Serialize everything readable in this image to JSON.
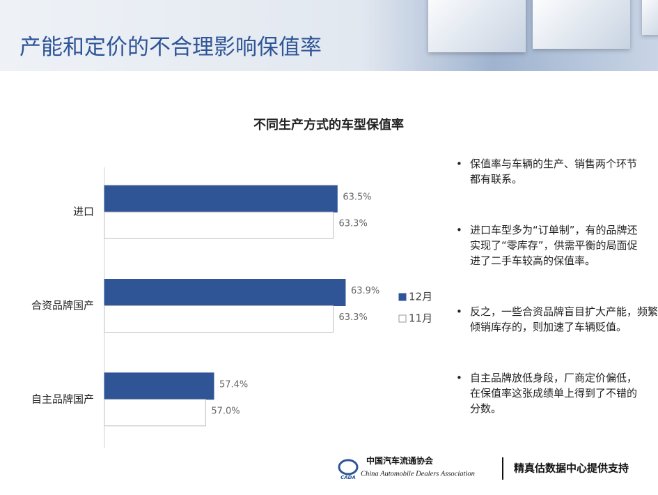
{
  "header": {
    "title": "产能和定价的不合理影响保值率"
  },
  "chart_data": {
    "type": "bar",
    "orientation": "horizontal",
    "title": "不同生产方式的车型保值率",
    "categories": [
      "进口",
      "合资品牌国产",
      "自主品牌国产"
    ],
    "series": [
      {
        "name": "12月",
        "color": "#2f5597",
        "values": [
          63.5,
          63.9,
          57.4
        ],
        "value_labels": [
          "63.5%",
          "63.9%",
          "57.4%"
        ]
      },
      {
        "name": "11月",
        "color": "#ffffff",
        "values": [
          63.3,
          63.3,
          57.0
        ],
        "value_labels": [
          "63.3%",
          "63.3%",
          "57.0%"
        ]
      }
    ],
    "xlim": [
      52,
      66
    ]
  },
  "bullets": [
    "保值率与车辆的生产、销售两个环节都有联系。",
    "进口车型多为“订单制”，有的品牌还实现了“零库存”，供需平衡的局面促进了二手车较高的保值率。",
    "反之，一些合资品牌盲目扩大产能，频繁倾销库存的，则加速了车辆贬值。",
    "自主品牌放低身段，厂商定价偏低，在保值率这张成绩单上得到了不错的分数。"
  ],
  "footer": {
    "logo_mark": "CADA",
    "org_cn": "中国汽车流通协会",
    "org_en": "China Automobile Dealers Association",
    "support": "精真估数据中心提供支持"
  }
}
